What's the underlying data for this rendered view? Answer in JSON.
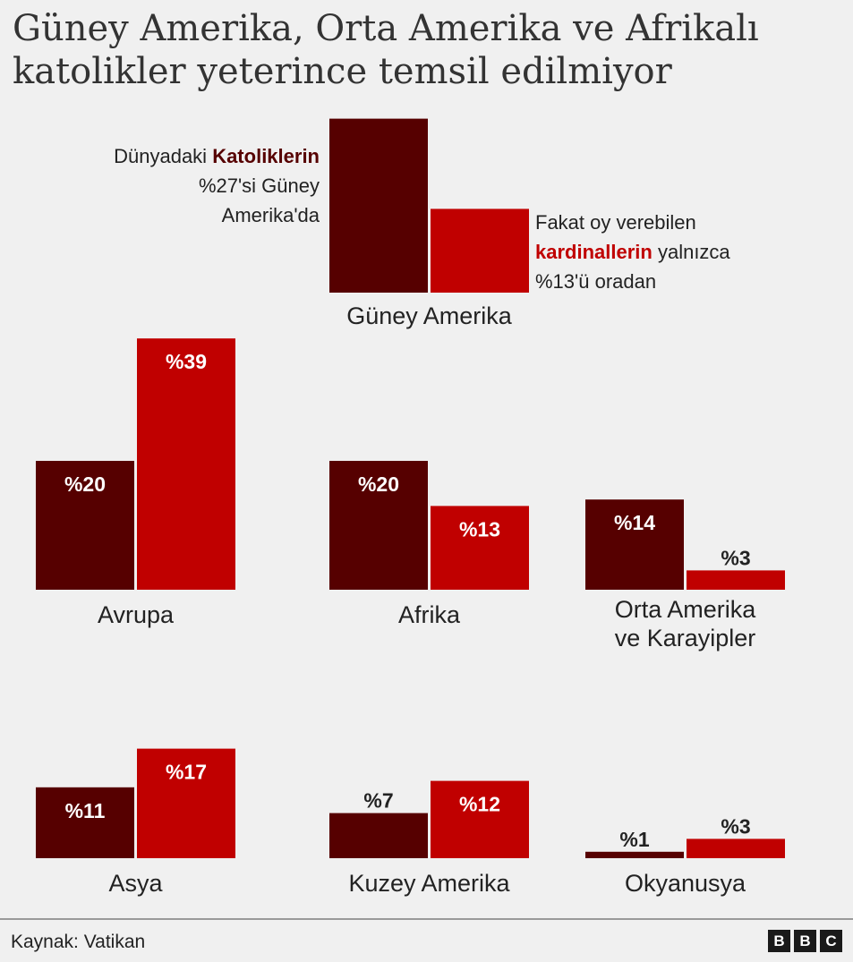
{
  "title": {
    "line1": "Güney Amerika, Orta Amerika ve Afrikalı",
    "line2": "katolikler yeterince temsil edilmiyor"
  },
  "annotation_left": {
    "line1_prefix": "Dünyadaki ",
    "line1_keyword": "Katoliklerin",
    "line2": "%27'si Güney",
    "line3": "Amerika'da"
  },
  "annotation_right": {
    "line1": "Fakat oy verebilen",
    "line2_keyword": "kardinallerin",
    "line2_suffix": " yalnızca",
    "line3": "%13'ü oradan"
  },
  "colors": {
    "catholics": "#560000",
    "cardinals": "#c00000",
    "background": "#f0f0f0"
  },
  "chart_data": {
    "type": "bar",
    "series": [
      {
        "key": "catholics",
        "color": "#560000"
      },
      {
        "key": "cardinals",
        "color": "#c00000"
      }
    ],
    "panels": [
      {
        "category": [
          "Güney Amerika"
        ],
        "values": [
          27,
          13
        ],
        "labels": [
          "",
          ""
        ]
      },
      {
        "category": [
          "Avrupa"
        ],
        "values": [
          20,
          39
        ],
        "labels": [
          "%20",
          "%39"
        ]
      },
      {
        "category": [
          "Afrika"
        ],
        "values": [
          20,
          13
        ],
        "labels": [
          "%20",
          "%13"
        ]
      },
      {
        "category": [
          "Orta Amerika",
          "ve Karayipler"
        ],
        "values": [
          14,
          3
        ],
        "labels": [
          "%14",
          "%3"
        ]
      },
      {
        "category": [
          "Asya"
        ],
        "values": [
          11,
          17
        ],
        "labels": [
          "%11",
          "%17"
        ]
      },
      {
        "category": [
          "Kuzey Amerika"
        ],
        "values": [
          7,
          12
        ],
        "labels": [
          "%7",
          "%12"
        ]
      },
      {
        "category": [
          "Okyanusya"
        ],
        "values": [
          1,
          3
        ],
        "labels": [
          "%1",
          "%3"
        ]
      }
    ]
  },
  "footer": {
    "source": "Kaynak: Vatikan",
    "logo_letters": [
      "B",
      "B",
      "C"
    ]
  }
}
